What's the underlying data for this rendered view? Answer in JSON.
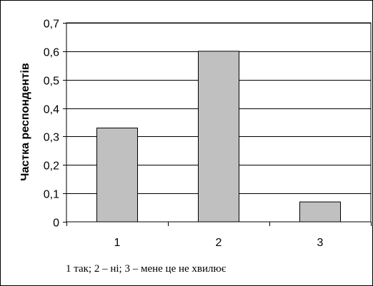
{
  "chart_data": {
    "type": "bar",
    "categories": [
      "1",
      "2",
      "3"
    ],
    "values": [
      0.33,
      0.6,
      0.07
    ],
    "title": "",
    "xlabel": "",
    "ylabel": "Частка респондентів",
    "ylim": [
      0,
      0.7
    ],
    "yticks": [
      "0",
      "0,1",
      "0,2",
      "0,3",
      "0,4",
      "0,5",
      "0,6",
      "0,7"
    ],
    "grid": true,
    "bar_color": "#c0c0c0",
    "caption": "1 так; 2 – ні; 3 – мене це не хвилює"
  }
}
